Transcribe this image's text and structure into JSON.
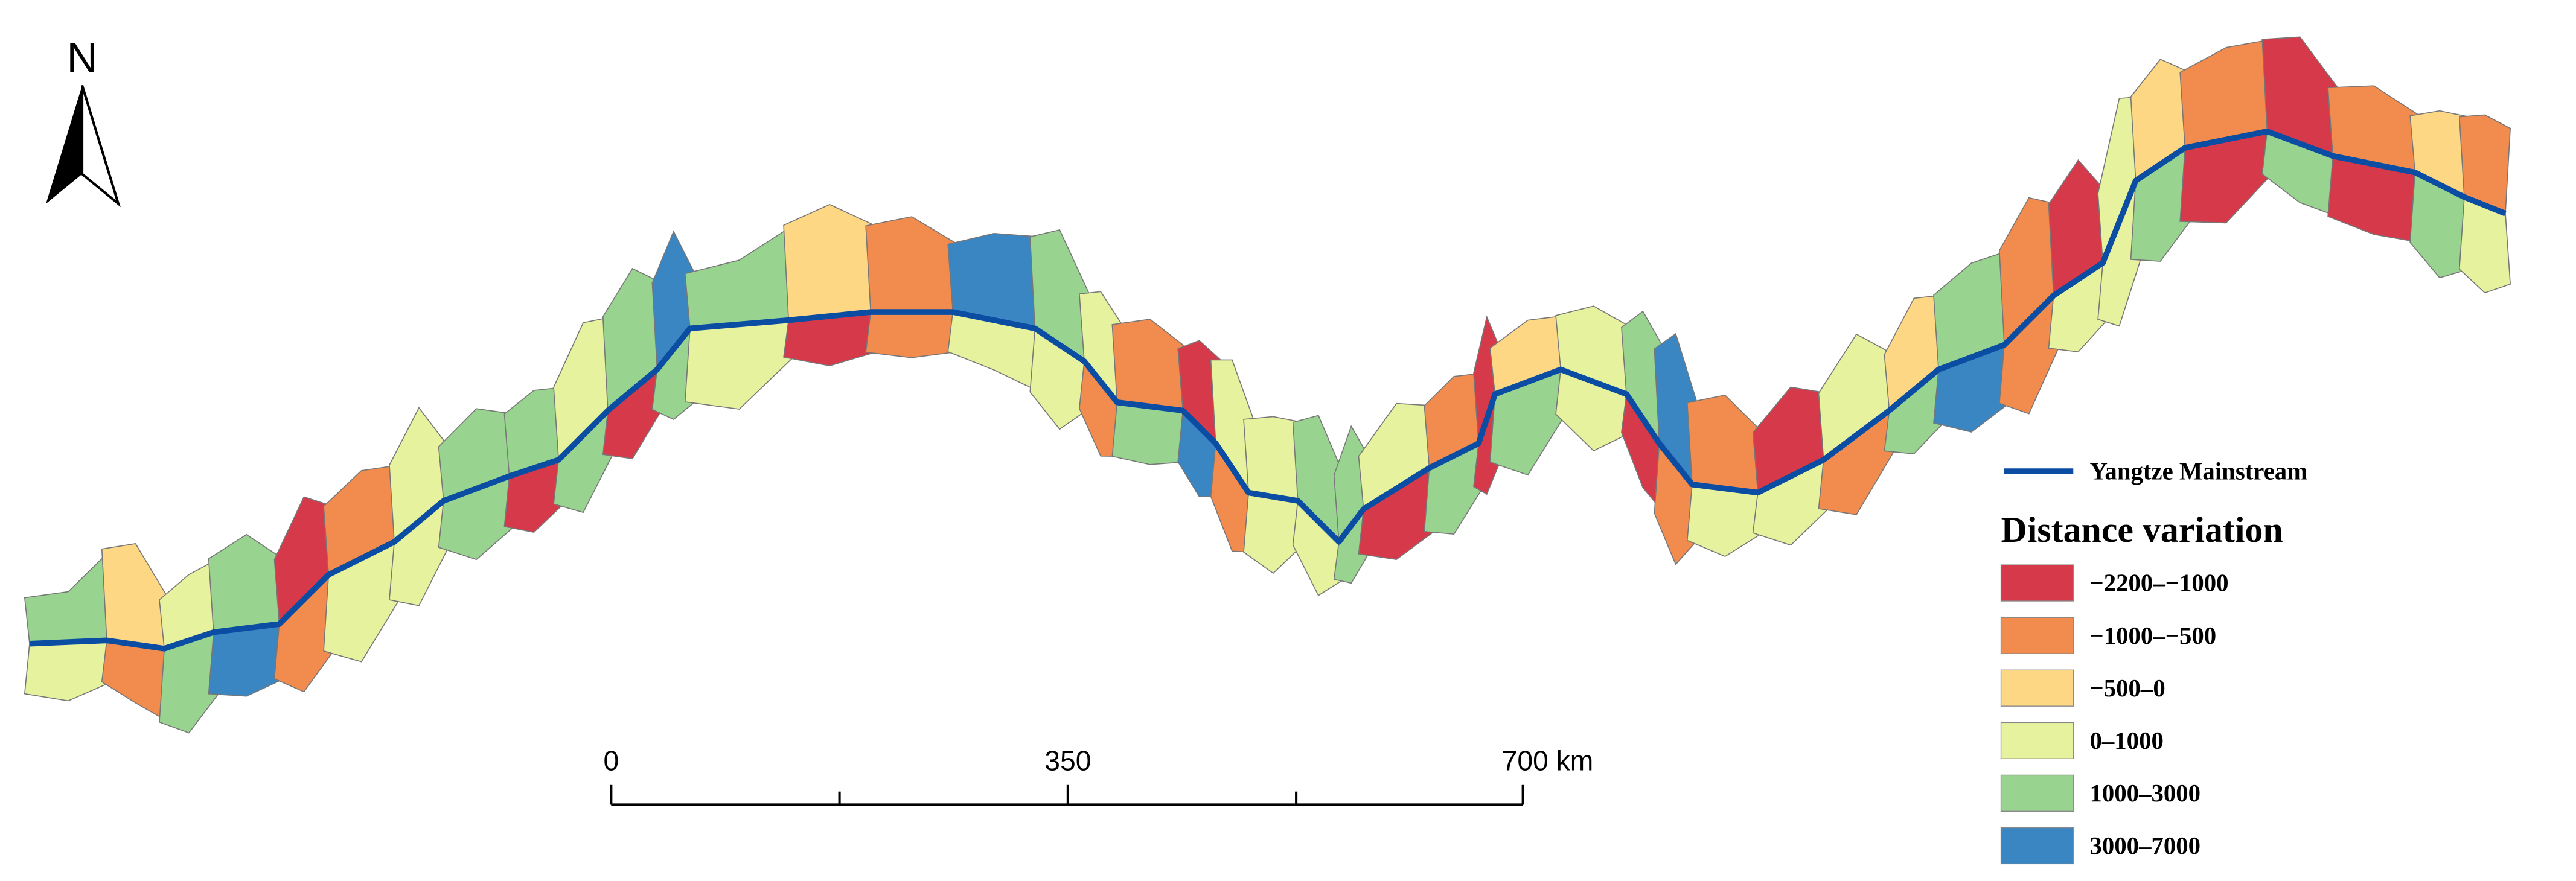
{
  "north_arrow": {
    "label": "N"
  },
  "scale_bar": {
    "labels": [
      "0",
      "350",
      "700 km"
    ]
  },
  "legend": {
    "river": {
      "label": "Yangtze Mainstream",
      "color": "#0b4da2"
    },
    "title": "Distance variation",
    "classes": [
      {
        "label": "−2200–−1000",
        "color": "#d63a4a"
      },
      {
        "label": "−1000–−500",
        "color": "#f28c4e"
      },
      {
        "label": "−500–0",
        "color": "#fdd783"
      },
      {
        "label": "0–1000",
        "color": "#e6f29d"
      },
      {
        "label": "1000–3000",
        "color": "#98d490"
      },
      {
        "label": "3000–7000",
        "color": "#3a86c3"
      }
    ]
  }
}
